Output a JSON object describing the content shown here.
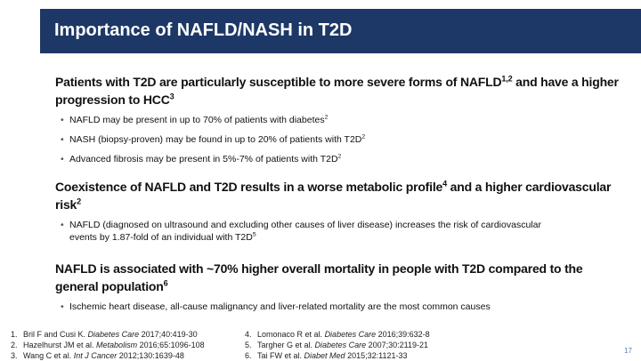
{
  "slide": {
    "title": "Importance of NAFLD/NASH in T2D",
    "sections": [
      {
        "heading": [
          {
            "text": "Patients with T2D are particularly susceptible to more severe forms of NAFLD"
          },
          {
            "sup": "1,2"
          },
          {
            "text": " and have a higher progression to HCC"
          },
          {
            "sup": "3"
          }
        ],
        "bullets": [
          [
            {
              "text": "NAFLD may be present in up to 70% of patients with diabetes"
            },
            {
              "sup": "2"
            }
          ],
          [
            {
              "text": "NASH (biopsy-proven) may be found in up to 20% of patients with T2D"
            },
            {
              "sup": "2"
            }
          ],
          [
            {
              "text": "Advanced fibrosis may be present in 5%-7% of patients with T2D"
            },
            {
              "sup": "2"
            }
          ]
        ]
      },
      {
        "heading": [
          {
            "text": "Coexistence of NAFLD and T2D results in a worse metabolic profile"
          },
          {
            "sup": "4"
          },
          {
            "text": " and a higher cardiovascular risk"
          },
          {
            "sup": "2"
          }
        ],
        "bullets": [
          [
            {
              "text": "NAFLD (diagnosed on ultrasound and excluding other causes of liver disease) increases the risk of cardiovascular events by 1.87-fold of an individual with T2D"
            },
            {
              "sup": "5"
            }
          ]
        ]
      },
      {
        "heading": [
          {
            "text": "NAFLD is associated with ~70% higher overall mortality in people with T2D compared to the general population"
          },
          {
            "sup": "6"
          }
        ],
        "bullets": [
          [
            {
              "text": "Ischemic heart disease, all-cause malignancy and liver-related mortality are the most common causes"
            }
          ]
        ]
      }
    ],
    "references_left": [
      {
        "number": "1.",
        "authors": "Bril F and Cusi K.",
        "journal": "Diabetes Care",
        "citation": "2017;40:419-30"
      },
      {
        "number": "2.",
        "authors": "Hazelhurst JM et al.",
        "journal": "Metabolism",
        "citation": "2016;65:1096-108"
      },
      {
        "number": "3.",
        "authors": "Wang C et al.",
        "journal": "Int J Cancer",
        "citation": "2012;130:1639-48"
      }
    ],
    "references_right": [
      {
        "number": "4.",
        "authors": "Lomonaco R et al.",
        "journal": "Diabetes Care",
        "citation": "2016;39:632-8"
      },
      {
        "number": "5.",
        "authors": "Targher G et al.",
        "journal": "Diabetes Care",
        "citation": "2007;30:2119-21"
      },
      {
        "number": "6.",
        "authors": "Tai FW et al.",
        "journal": "Diabet Med",
        "citation": "2015;32:1121-33"
      }
    ],
    "page_number": "17"
  }
}
